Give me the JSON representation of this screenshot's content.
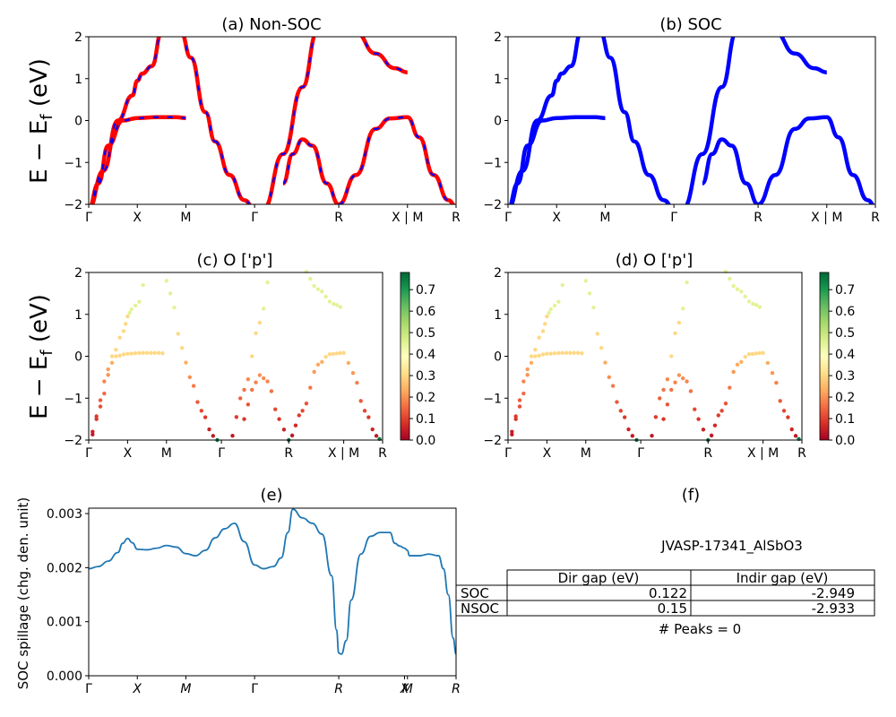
{
  "figure": {
    "ylabel_band": "E − E_f (eV)",
    "ylabel_spill": "SOC spillage (chg. den. unit)"
  },
  "kpath": {
    "labels": [
      "Γ",
      "X",
      "M",
      "Γ",
      "R",
      "X | M",
      "R"
    ],
    "spill_labels": [
      "Γ",
      "X",
      "M",
      "Γ",
      "R",
      "X",
      "M",
      "R"
    ],
    "positions": [
      0,
      0.5,
      1.0,
      1.707,
      2.573,
      3.28,
      3.78
    ]
  },
  "panels": {
    "a": {
      "title": "(a) Non-SOC"
    },
    "b": {
      "title": "(b) SOC"
    },
    "c": {
      "title": "(c)  O ['p']"
    },
    "d": {
      "title": "(d) O ['p']"
    },
    "e": {
      "title": "(e)"
    },
    "f": {
      "title": "(f)"
    }
  },
  "colors": {
    "nonsoc": "#ff0000",
    "nonsoc_dash": "#0000ff",
    "soc": "#0000ff",
    "spill": "#1f77b4"
  },
  "colorbar": {
    "ticks": [
      "0.0",
      "0.1",
      "0.2",
      "0.3",
      "0.4",
      "0.5",
      "0.6",
      "0.7"
    ],
    "min": 0,
    "max": 0.78,
    "colormap": "RdYlGn"
  },
  "table": {
    "material": "JVASP-17341_AlSbO3",
    "header": [
      "",
      "Dir gap (eV)",
      "Indir gap (eV)"
    ],
    "rows": [
      [
        "SOC",
        "0.122",
        "-2.949"
      ],
      [
        "NSOC",
        "0.15",
        "-2.933"
      ]
    ],
    "peaks": "# Peaks = 0"
  },
  "chart_data": [
    {
      "type": "line",
      "title": "(a) Non-SOC",
      "ylabel": "E − E_f (eV)",
      "ylim": [
        -2,
        2
      ],
      "yticks": [
        -2,
        -1,
        0,
        1,
        2
      ],
      "x_ticks": [
        "Γ",
        "X",
        "M",
        "Γ",
        "R",
        "X | M",
        "R"
      ],
      "series": [
        {
          "x": [
            0.0,
            0.1,
            0.2,
            0.35,
            0.5,
            0.7,
            0.9,
            1.0
          ],
          "y": [
            -2.1,
            -1.5,
            -0.6,
            0.0,
            0.06,
            0.08,
            0.08,
            0.06
          ]
        },
        {
          "x": [
            0.0,
            0.15,
            0.3,
            0.45,
            0.5,
            0.55,
            0.65,
            0.75
          ],
          "y": [
            -2.1,
            -1.2,
            0.0,
            0.6,
            0.95,
            1.12,
            1.3,
            2.1
          ]
        },
        {
          "x": [
            0.95,
            1.05,
            1.2,
            1.3
          ],
          "y": [
            2.1,
            1.5,
            0.2,
            -0.5
          ]
        },
        {
          "x": [
            1.3,
            1.45,
            1.6,
            1.707
          ],
          "y": [
            -0.5,
            -1.3,
            -1.9,
            -2.1
          ]
        },
        {
          "x": [
            1.8,
            2.0,
            2.2,
            2.35
          ],
          "y": [
            -2.1,
            -0.8,
            0.8,
            2.1
          ]
        },
        {
          "x": [
            2.0,
            2.1,
            2.2,
            2.3,
            2.45,
            2.573
          ],
          "y": [
            -1.5,
            -0.8,
            -0.45,
            -0.6,
            -1.5,
            -2.0
          ]
        },
        {
          "x": [
            2.573,
            2.75,
            2.95,
            3.1,
            3.28,
            3.4,
            3.55,
            3.7,
            3.78
          ],
          "y": [
            -2.0,
            -1.3,
            -0.2,
            0.05,
            0.08,
            -0.4,
            -1.3,
            -1.9,
            -2.05
          ]
        },
        {
          "x": [
            2.75,
            2.95,
            3.15,
            3.28
          ],
          "y": [
            2.1,
            1.6,
            1.25,
            1.15
          ]
        }
      ]
    },
    {
      "type": "line",
      "title": "(b) SOC",
      "ylim": [
        -2,
        2
      ],
      "x_ticks": [
        "Γ",
        "X",
        "M",
        "Γ",
        "R",
        "X | M",
        "R"
      ],
      "series": [
        {
          "x": [
            0.0,
            0.1,
            0.2,
            0.35,
            0.5,
            0.7,
            0.9,
            1.0
          ],
          "y": [
            -2.1,
            -1.5,
            -0.6,
            0.0,
            0.06,
            0.08,
            0.08,
            0.06
          ]
        },
        {
          "x": [
            0.0,
            0.15,
            0.3,
            0.45,
            0.5,
            0.55,
            0.65,
            0.75
          ],
          "y": [
            -2.1,
            -1.2,
            0.0,
            0.6,
            0.95,
            1.12,
            1.3,
            2.1
          ]
        }
      ]
    },
    {
      "type": "scatter",
      "title": "(c)  O ['p']",
      "ylim": [
        -2,
        2
      ],
      "colorbar_range": [
        0,
        0.78
      ]
    },
    {
      "type": "scatter",
      "title": "(d) O ['p']",
      "ylim": [
        -2,
        2
      ],
      "colorbar_range": [
        0,
        0.78
      ]
    },
    {
      "type": "line",
      "title": "(e)",
      "ylabel": "SOC spillage (chg. den. unit)",
      "ylim": [
        0,
        0.0031
      ],
      "yticks": [
        "0.000",
        "0.001",
        "0.002",
        "0.003"
      ],
      "x": [
        0.0,
        0.1,
        0.2,
        0.3,
        0.35,
        0.4,
        0.45,
        0.5,
        0.6,
        0.7,
        0.8,
        0.9,
        1.0,
        1.1,
        1.2,
        1.3,
        1.4,
        1.5,
        1.6,
        1.707,
        1.8,
        1.9,
        1.98,
        2.05,
        2.1,
        2.2,
        2.3,
        2.4,
        2.5,
        2.55,
        2.573,
        2.6,
        2.65,
        2.7,
        2.8,
        2.9,
        3.0,
        3.1,
        3.15,
        3.2,
        3.25,
        3.28,
        3.3,
        3.4,
        3.5,
        3.6,
        3.65,
        3.7,
        3.75,
        3.78
      ],
      "y": [
        0.00198,
        0.00202,
        0.00212,
        0.00228,
        0.00245,
        0.00254,
        0.00246,
        0.00234,
        0.00233,
        0.00236,
        0.00241,
        0.00238,
        0.00226,
        0.00222,
        0.00232,
        0.00255,
        0.00272,
        0.00282,
        0.00248,
        0.00205,
        0.00198,
        0.00202,
        0.00218,
        0.00265,
        0.00308,
        0.00292,
        0.00282,
        0.00262,
        0.00185,
        0.00085,
        0.00042,
        0.0004,
        0.00065,
        0.0014,
        0.00225,
        0.00258,
        0.00265,
        0.00265,
        0.00245,
        0.0024,
        0.00236,
        0.00232,
        0.00222,
        0.00222,
        0.00225,
        0.00222,
        0.00198,
        0.0015,
        0.0007,
        0.0004
      ]
    },
    {
      "type": "table",
      "title": "(f)",
      "caption": "JVASP-17341_AlSbO3",
      "columns": [
        "",
        "Dir gap (eV)",
        "Indir gap (eV)"
      ],
      "rows": [
        [
          "SOC",
          "0.122",
          "-2.949"
        ],
        [
          "NSOC",
          "0.15",
          "-2.933"
        ]
      ],
      "footer": "# Peaks = 0"
    }
  ]
}
